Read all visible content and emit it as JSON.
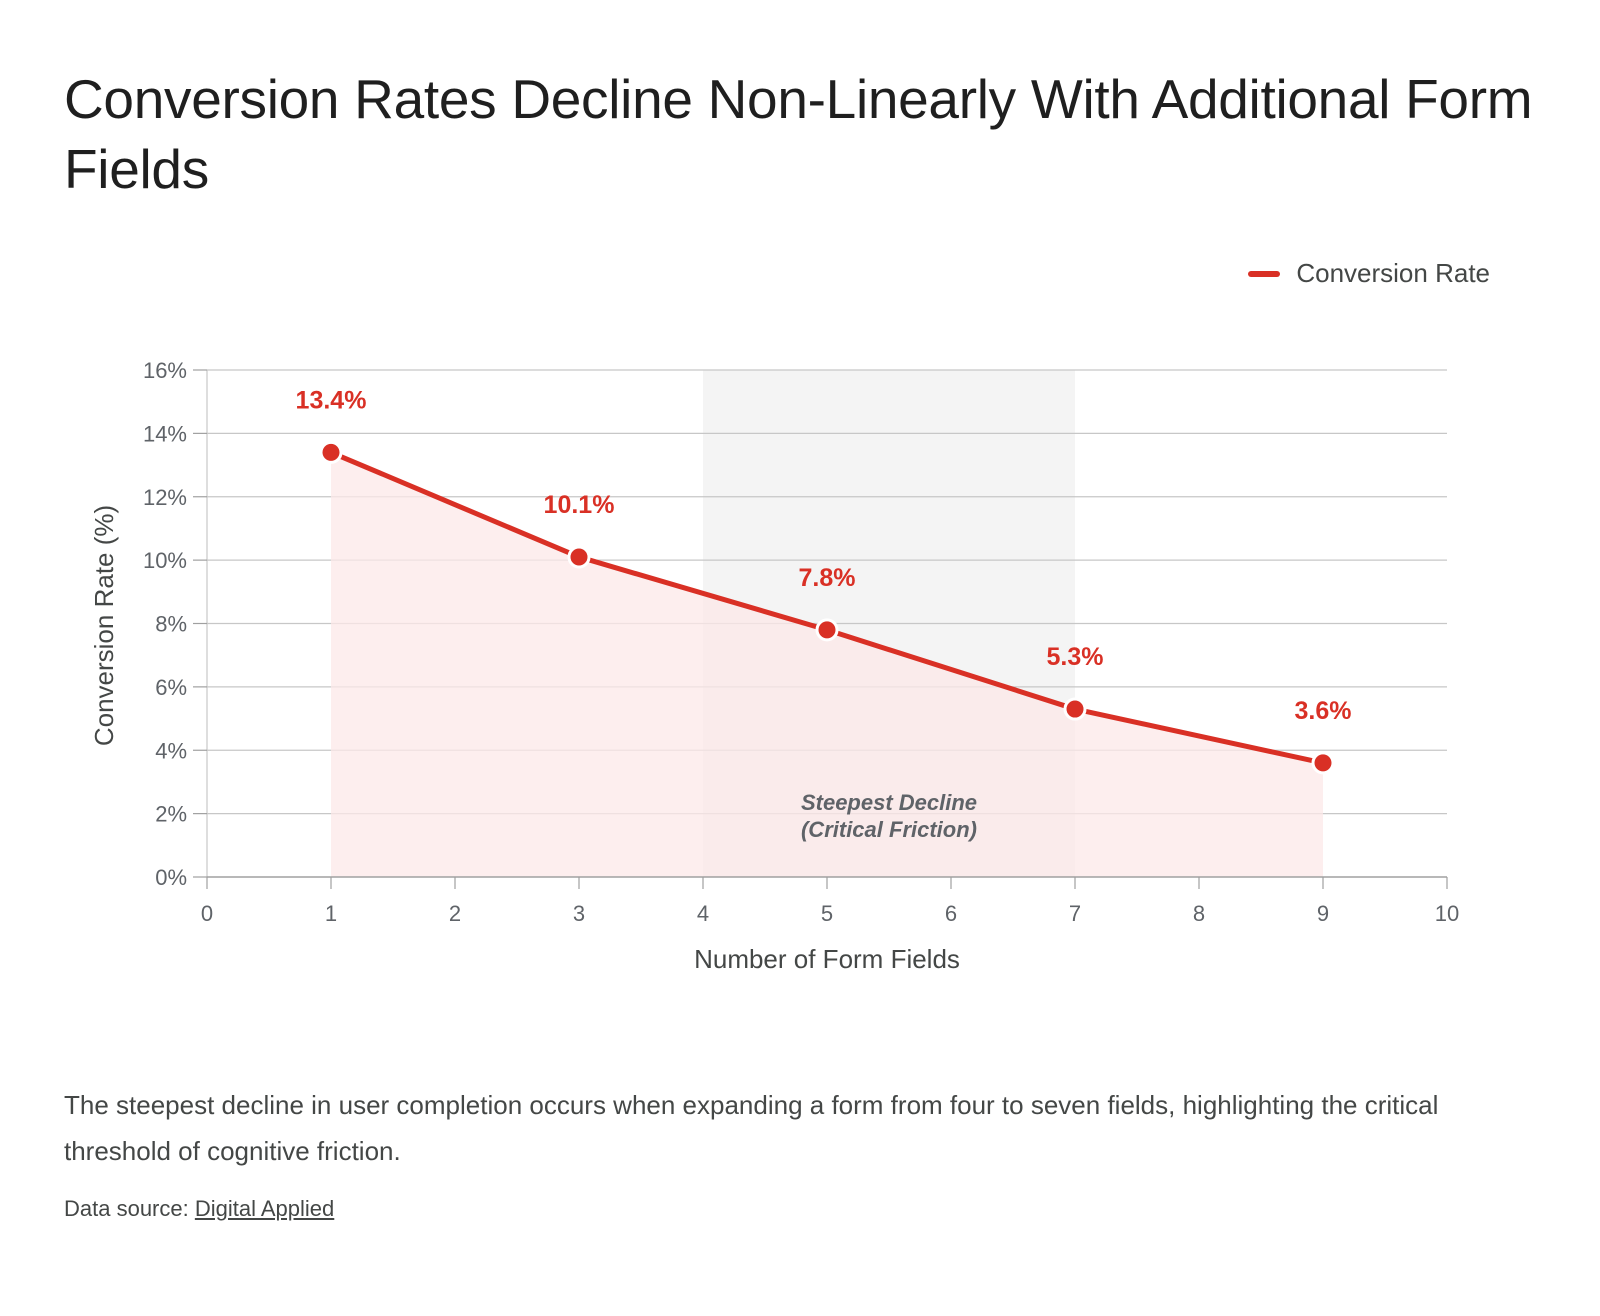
{
  "title": "Conversion Rates Decline Non-Linearly With Additional Form Fields",
  "caption": "The steepest decline in user completion occurs when expanding a form from four to seven fields, highlighting the critical threshold of cognitive friction.",
  "source": {
    "prefix": "Data source: ",
    "link_text": "Digital Applied"
  },
  "colors": {
    "line": "#d93025",
    "area": "#fce8e8",
    "highlight_band": "#f4f4f4",
    "grid": "#c7c7c7",
    "axis": "#a0a0a0"
  },
  "chart_data": {
    "type": "line",
    "title": "",
    "xlabel": "Number of Form Fields",
    "ylabel": "Conversion Rate (%)",
    "xlim": [
      0,
      10
    ],
    "ylim": [
      0,
      16
    ],
    "x_ticks": [
      0,
      1,
      2,
      3,
      4,
      5,
      6,
      7,
      8,
      9,
      10
    ],
    "y_ticks": [
      0,
      2,
      4,
      6,
      8,
      10,
      12,
      14,
      16
    ],
    "y_tick_labels": [
      "0%",
      "2%",
      "4%",
      "6%",
      "8%",
      "10%",
      "12%",
      "14%",
      "16%"
    ],
    "grid": true,
    "legend_position": "top-right",
    "series": [
      {
        "name": "Conversion Rate",
        "x": [
          1,
          3,
          5,
          7,
          9
        ],
        "y": [
          13.4,
          10.1,
          7.8,
          5.3,
          3.6
        ],
        "labels": [
          "13.4%",
          "10.1%",
          "7.8%",
          "5.3%",
          "3.6%"
        ]
      }
    ],
    "highlight_band": {
      "x_start": 4,
      "x_end": 7,
      "label_lines": [
        "Steepest Decline",
        "(Critical Friction)"
      ]
    }
  }
}
